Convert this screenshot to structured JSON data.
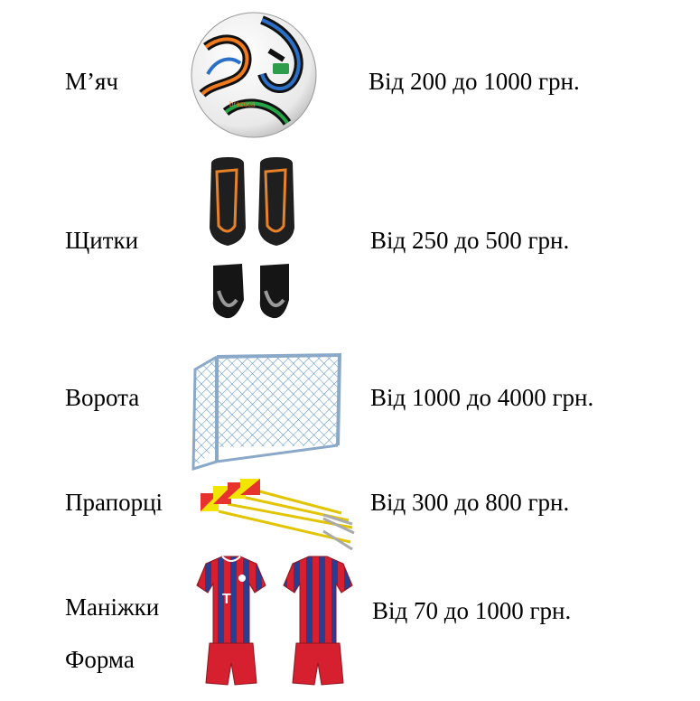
{
  "items": [
    {
      "name": "М’яч",
      "price": "Від 200 до 1000 грн.",
      "icon": "soccer-ball-icon"
    },
    {
      "name": "Щитки",
      "price": "Від 250 до 500 грн.",
      "icon": "shin-guards-icon"
    },
    {
      "name": "Ворота",
      "price": "Від 1000 до 4000 грн.",
      "icon": "goal-net-icon"
    },
    {
      "name": "Прапорці",
      "price": "Від 300 до 800 грн.",
      "icon": "corner-flags-icon"
    },
    {
      "name": "Маніжки",
      "price": "Від 70 до 1000 грн.",
      "icon": "jersey-kit-icon"
    },
    {
      "name": "Форма"
    }
  ],
  "colors": {
    "text": "#000000",
    "goal_frame": "#8aa9c9",
    "goal_net": "#3a7fc2",
    "flag_yellow": "#f2e600",
    "flag_red": "#e8322e",
    "jersey_red": "#d61f2f",
    "jersey_blue": "#2a3d8f"
  }
}
